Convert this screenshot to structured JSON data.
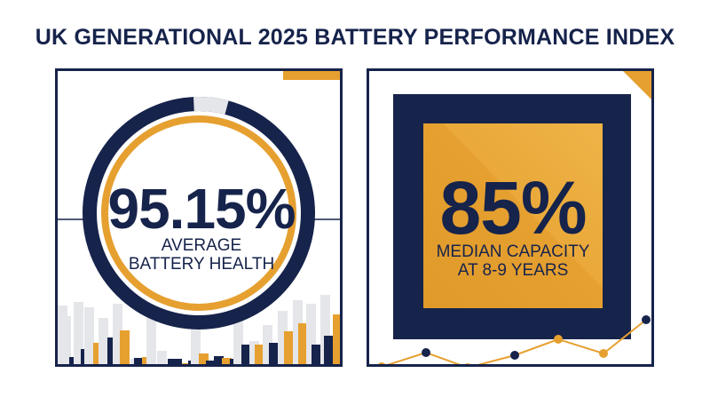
{
  "title": "UK GENERATIONAL 2025 BATTERY PERFORMANCE INDEX",
  "colors": {
    "navy": "#16234b",
    "orange": "#e6a030",
    "light_gray": "#e5e6ea"
  },
  "left_panel": {
    "value": "95.15%",
    "caption_line1": "AVERAGE",
    "caption_line2": "BATTERY HEALTH",
    "ring_fill_fraction": 0.9515
  },
  "right_panel": {
    "value": "85%",
    "caption_line1": "MEDIAN CAPACITY",
    "caption_line2": "AT 8-9 YEARS"
  }
}
